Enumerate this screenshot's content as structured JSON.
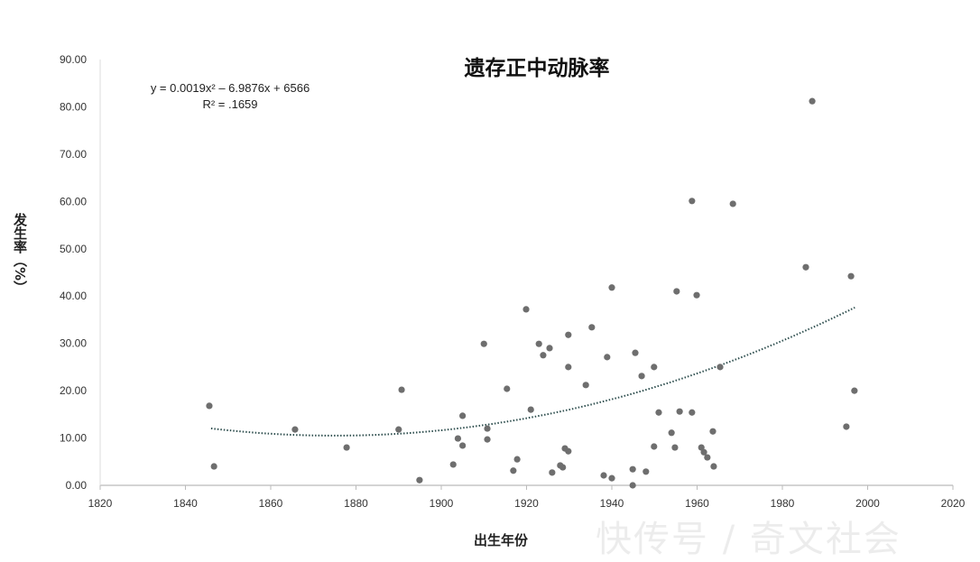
{
  "chart_data": {
    "type": "scatter",
    "title": "遗存正中动脉率",
    "xlabel": "出生年份",
    "ylabel": "发生率（%）",
    "xlim": [
      1820,
      2020
    ],
    "ylim": [
      0,
      90
    ],
    "xticks": [
      "1820",
      "1840",
      "1860",
      "1880",
      "1900",
      "1920",
      "1940",
      "1960",
      "1980",
      "2000",
      "2020"
    ],
    "yticks": [
      "0.00",
      "10.00",
      "20.00",
      "30.00",
      "40.00",
      "50.00",
      "60.00",
      "70.00",
      "80.00",
      "90.00"
    ],
    "grid": false,
    "equation": "y = 0.0019x² – 6.9876x + 6566",
    "r_squared": "R² = .1659",
    "trendline": {
      "type": "polynomial-2",
      "vertex_year": 1875,
      "vertex_value": 10.5,
      "curvature": 0.00182,
      "x_range": [
        1846,
        1997
      ]
    },
    "point_color": "#6e6e6e",
    "points": [
      [
        1845.6,
        16.8
      ],
      [
        1846.7,
        4.0
      ],
      [
        1865.7,
        11.8
      ],
      [
        1877.8,
        8.0
      ],
      [
        1890,
        11.8
      ],
      [
        1890.7,
        20.2
      ],
      [
        1894.9,
        1.1
      ],
      [
        1902.8,
        4.4
      ],
      [
        1903.9,
        9.9
      ],
      [
        1905,
        14.7
      ],
      [
        1905,
        8.4
      ],
      [
        1910,
        29.9
      ],
      [
        1910.8,
        12
      ],
      [
        1910.8,
        9.7
      ],
      [
        1915.4,
        20.4
      ],
      [
        1916.9,
        3.1
      ],
      [
        1917.8,
        5.5
      ],
      [
        1919.9,
        37.2
      ],
      [
        1921,
        16
      ],
      [
        1922.9,
        29.9
      ],
      [
        1923.9,
        27.5
      ],
      [
        1925.4,
        29
      ],
      [
        1926,
        2.7
      ],
      [
        1927.9,
        4.2
      ],
      [
        1928.5,
        3.8
      ],
      [
        1929,
        7.8
      ],
      [
        1929.8,
        7.2
      ],
      [
        1929.8,
        31.8
      ],
      [
        1929.8,
        25
      ],
      [
        1933.9,
        21.2
      ],
      [
        1935.3,
        33.4
      ],
      [
        1938.1,
        2.1
      ],
      [
        1938.9,
        27.1
      ],
      [
        1940,
        1.5
      ],
      [
        1940,
        41.8
      ],
      [
        1944.9,
        3.4
      ],
      [
        1944.9,
        0
      ],
      [
        1945.5,
        28
      ],
      [
        1947,
        23.1
      ],
      [
        1948,
        2.9
      ],
      [
        1949.9,
        25
      ],
      [
        1949.9,
        8.2
      ],
      [
        1951,
        15.4
      ],
      [
        1954,
        11.1
      ],
      [
        1954.8,
        8
      ],
      [
        1955.2,
        41
      ],
      [
        1955.9,
        15.6
      ],
      [
        1958.8,
        60.1
      ],
      [
        1958.8,
        15.4
      ],
      [
        1959.9,
        40.2
      ],
      [
        1961,
        8
      ],
      [
        1961.6,
        7
      ],
      [
        1962.4,
        5.9
      ],
      [
        1963.7,
        11.4
      ],
      [
        1963.9,
        4
      ],
      [
        1965.4,
        25
      ],
      [
        1968.4,
        59.5
      ],
      [
        1985.5,
        46.1
      ],
      [
        1987,
        81.2
      ],
      [
        1995,
        12.4
      ],
      [
        1996.1,
        44.2
      ],
      [
        1996.9,
        20
      ]
    ]
  },
  "watermark": "快传号 / 奇文社会"
}
